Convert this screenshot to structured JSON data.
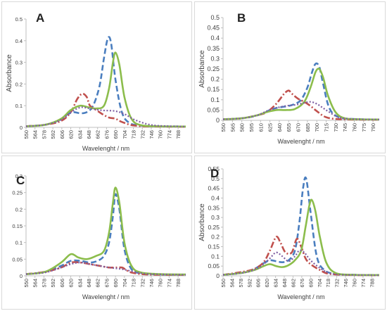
{
  "colors": {
    "blue": "#4a7ebf",
    "red": "#c0504d",
    "green": "#8cbd4c",
    "purple": "#7f5fa3",
    "axis": "#bfbfbf",
    "text": "#404040"
  },
  "chart_data": [
    {
      "type": "line",
      "panel_letter": "A",
      "xlabel": "Wavelenght / nm",
      "ylabel": "Absorbance",
      "x_ticks": [
        "550",
        "564",
        "578",
        "592",
        "606",
        "620",
        "634",
        "648",
        "662",
        "676",
        "690",
        "704",
        "718",
        "732",
        "746",
        "760",
        "774",
        "788"
      ],
      "y_ticks": [
        "0",
        "0.1",
        "0.2",
        "0.3",
        "0.4",
        "0.5"
      ],
      "xlim": [
        550,
        800
      ],
      "ylim": [
        0,
        0.5
      ],
      "series": [
        {
          "style": "dash",
          "color": "blue",
          "x": [
            550,
            580,
            600,
            615,
            625,
            635,
            645,
            655,
            665,
            672,
            678,
            683,
            690,
            700,
            712,
            730,
            750,
            800
          ],
          "y": [
            0.005,
            0.012,
            0.03,
            0.06,
            0.07,
            0.065,
            0.07,
            0.1,
            0.19,
            0.32,
            0.41,
            0.39,
            0.22,
            0.07,
            0.02,
            0.008,
            0.005,
            0.004
          ]
        },
        {
          "style": "dashdot",
          "color": "red",
          "x": [
            550,
            580,
            605,
            620,
            630,
            638,
            645,
            650,
            660,
            670,
            680,
            690,
            700,
            720,
            760,
            800
          ],
          "y": [
            0.005,
            0.012,
            0.03,
            0.07,
            0.13,
            0.155,
            0.14,
            0.1,
            0.08,
            0.06,
            0.045,
            0.04,
            0.025,
            0.008,
            0.004,
            0.003
          ]
        },
        {
          "style": "solid",
          "color": "green",
          "x": [
            550,
            580,
            605,
            620,
            635,
            648,
            660,
            672,
            680,
            686,
            690,
            696,
            704,
            715,
            730,
            760,
            800
          ],
          "y": [
            0.005,
            0.012,
            0.04,
            0.08,
            0.1,
            0.092,
            0.087,
            0.1,
            0.18,
            0.3,
            0.345,
            0.29,
            0.14,
            0.04,
            0.01,
            0.005,
            0.004
          ]
        },
        {
          "style": "dot",
          "color": "purple",
          "x": [
            550,
            580,
            605,
            620,
            635,
            648,
            660,
            672,
            690,
            705,
            720,
            740,
            760,
            800
          ],
          "y": [
            0.005,
            0.012,
            0.035,
            0.07,
            0.092,
            0.088,
            0.082,
            0.078,
            0.075,
            0.06,
            0.035,
            0.015,
            0.007,
            0.004
          ]
        }
      ]
    },
    {
      "type": "line",
      "panel_letter": "B",
      "xlabel": "Wavelenght / nm",
      "ylabel": "Absorbance",
      "x_ticks": [
        "550",
        "565",
        "580",
        "595",
        "610",
        "625",
        "640",
        "655",
        "670",
        "685",
        "700",
        "715",
        "730",
        "745",
        "760",
        "775",
        "790"
      ],
      "y_ticks": [
        "0",
        "0.05",
        "0.1",
        "0.15",
        "0.2",
        "0.25",
        "0.3",
        "0.35",
        "0.4",
        "0.45",
        "0.5"
      ],
      "xlim": [
        550,
        800
      ],
      "ylim": [
        0,
        0.5
      ],
      "series": [
        {
          "style": "dash",
          "color": "blue",
          "x": [
            550,
            580,
            600,
            615,
            625,
            635,
            645,
            655,
            665,
            675,
            685,
            692,
            698,
            704,
            710,
            720,
            735,
            760,
            800
          ],
          "y": [
            0.005,
            0.01,
            0.02,
            0.035,
            0.05,
            0.06,
            0.065,
            0.07,
            0.08,
            0.1,
            0.16,
            0.23,
            0.275,
            0.26,
            0.18,
            0.06,
            0.015,
            0.006,
            0.004
          ]
        },
        {
          "style": "dashdot",
          "color": "red",
          "x": [
            550,
            580,
            605,
            620,
            635,
            648,
            655,
            660,
            670,
            680,
            690,
            700,
            715,
            740,
            800
          ],
          "y": [
            0.005,
            0.01,
            0.025,
            0.04,
            0.08,
            0.13,
            0.145,
            0.13,
            0.105,
            0.09,
            0.07,
            0.045,
            0.015,
            0.005,
            0.003
          ]
        },
        {
          "style": "solid",
          "color": "green",
          "x": [
            550,
            580,
            605,
            620,
            635,
            650,
            665,
            680,
            690,
            698,
            704,
            710,
            718,
            730,
            745,
            770,
            800
          ],
          "y": [
            0.005,
            0.01,
            0.025,
            0.04,
            0.05,
            0.05,
            0.055,
            0.09,
            0.16,
            0.235,
            0.25,
            0.21,
            0.12,
            0.04,
            0.01,
            0.005,
            0.004
          ]
        },
        {
          "style": "dot",
          "color": "purple",
          "x": [
            550,
            580,
            605,
            620,
            635,
            650,
            665,
            680,
            690,
            700,
            710,
            720,
            735,
            760,
            800
          ],
          "y": [
            0.005,
            0.01,
            0.025,
            0.045,
            0.06,
            0.07,
            0.075,
            0.085,
            0.09,
            0.08,
            0.06,
            0.04,
            0.015,
            0.006,
            0.004
          ]
        }
      ]
    },
    {
      "type": "line",
      "panel_letter": "C",
      "xlabel": "Wavelenght / nm",
      "ylabel": "",
      "x_ticks": [
        "550",
        "564",
        "578",
        "592",
        "606",
        "620",
        "634",
        "648",
        "662",
        "676",
        "690",
        "704",
        "718",
        "732",
        "746",
        "760",
        "774",
        "788"
      ],
      "y_ticks": [
        "0",
        "0.05",
        "0.1",
        "0.15",
        "0.2",
        "0.25",
        "0.3"
      ],
      "xlim": [
        550,
        800
      ],
      "ylim": [
        0,
        0.3
      ],
      "series": [
        {
          "style": "dash",
          "color": "blue",
          "x": [
            550,
            580,
            605,
            620,
            635,
            650,
            662,
            672,
            680,
            686,
            690,
            696,
            704,
            715,
            730,
            760,
            800
          ],
          "y": [
            0.005,
            0.012,
            0.03,
            0.045,
            0.045,
            0.04,
            0.045,
            0.06,
            0.1,
            0.18,
            0.245,
            0.2,
            0.08,
            0.02,
            0.008,
            0.004,
            0.003
          ]
        },
        {
          "style": "dashdot",
          "color": "red",
          "x": [
            550,
            580,
            605,
            620,
            635,
            650,
            665,
            680,
            690,
            700,
            705,
            715,
            740,
            800
          ],
          "y": [
            0.005,
            0.012,
            0.025,
            0.04,
            0.04,
            0.035,
            0.03,
            0.025,
            0.025,
            0.025,
            0.02,
            0.01,
            0.004,
            0.003
          ]
        },
        {
          "style": "solid",
          "color": "green",
          "x": [
            550,
            580,
            605,
            620,
            632,
            645,
            660,
            672,
            680,
            686,
            690,
            696,
            704,
            715,
            730,
            760,
            800
          ],
          "y": [
            0.005,
            0.012,
            0.04,
            0.065,
            0.055,
            0.05,
            0.06,
            0.075,
            0.13,
            0.22,
            0.265,
            0.22,
            0.1,
            0.03,
            0.01,
            0.005,
            0.004
          ]
        },
        {
          "style": "dot",
          "color": "purple",
          "x": [
            550,
            580,
            605,
            620,
            635,
            650,
            665,
            680,
            700,
            720,
            740,
            800
          ],
          "y": [
            0.005,
            0.01,
            0.025,
            0.035,
            0.04,
            0.035,
            0.03,
            0.025,
            0.02,
            0.012,
            0.006,
            0.003
          ]
        }
      ]
    },
    {
      "type": "line",
      "panel_letter": "D",
      "xlabel": "Wavelenght / nm",
      "ylabel": "Absorbance",
      "x_ticks": [
        "550",
        "564",
        "578",
        "592",
        "606",
        "620",
        "634",
        "648",
        "662",
        "676",
        "690",
        "704",
        "718",
        "732",
        "746",
        "760",
        "774",
        "788"
      ],
      "y_ticks": [
        "0",
        "0.05",
        "0.1",
        "0.15",
        "0.2",
        "0.25",
        "0.3",
        "0.35",
        "0.4",
        "0.45",
        "0.5",
        "0.55"
      ],
      "xlim": [
        550,
        800
      ],
      "ylim": [
        0,
        0.55
      ],
      "series": [
        {
          "style": "dash",
          "color": "blue",
          "x": [
            550,
            580,
            600,
            615,
            625,
            635,
            645,
            655,
            665,
            672,
            678,
            683,
            690,
            700,
            712,
            730,
            760,
            800
          ],
          "y": [
            0.005,
            0.015,
            0.035,
            0.065,
            0.08,
            0.075,
            0.07,
            0.08,
            0.13,
            0.27,
            0.45,
            0.5,
            0.33,
            0.1,
            0.03,
            0.01,
            0.005,
            0.004
          ]
        },
        {
          "style": "dashdot",
          "color": "red",
          "x": [
            550,
            580,
            600,
            615,
            625,
            635,
            642,
            650,
            660,
            668,
            675,
            682,
            690,
            705,
            720,
            760,
            800
          ],
          "y": [
            0.005,
            0.02,
            0.035,
            0.07,
            0.13,
            0.2,
            0.17,
            0.12,
            0.12,
            0.19,
            0.15,
            0.09,
            0.06,
            0.03,
            0.01,
            0.004,
            0.003
          ]
        },
        {
          "style": "solid",
          "color": "green",
          "x": [
            550,
            580,
            600,
            615,
            625,
            635,
            645,
            655,
            665,
            675,
            682,
            688,
            692,
            698,
            705,
            715,
            730,
            760,
            800
          ],
          "y": [
            0.005,
            0.015,
            0.03,
            0.05,
            0.06,
            0.05,
            0.045,
            0.055,
            0.08,
            0.13,
            0.25,
            0.36,
            0.39,
            0.33,
            0.2,
            0.07,
            0.015,
            0.005,
            0.004
          ]
        },
        {
          "style": "dot",
          "color": "purple",
          "x": [
            550,
            580,
            600,
            615,
            625,
            635,
            645,
            655,
            665,
            672,
            680,
            690,
            705,
            720,
            740,
            800
          ],
          "y": [
            0.005,
            0.015,
            0.03,
            0.06,
            0.09,
            0.12,
            0.1,
            0.075,
            0.1,
            0.13,
            0.12,
            0.08,
            0.04,
            0.015,
            0.006,
            0.003
          ]
        }
      ]
    }
  ]
}
